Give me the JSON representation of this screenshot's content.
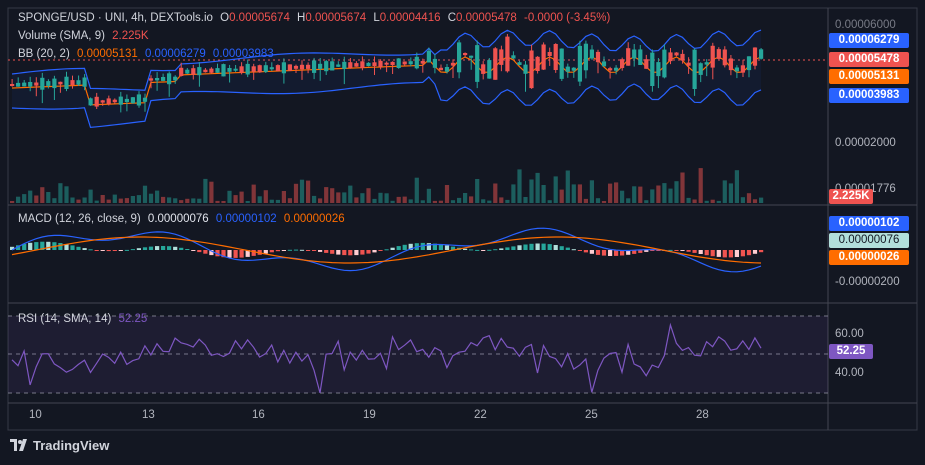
{
  "legend": {
    "symbol": "SPONGE/USD · UNI, 4h, DEXTools.io",
    "open_label": "O",
    "open": "0.00005674",
    "high_label": "H",
    "high": "0.00005674",
    "low_label": "L",
    "low": "0.00004416",
    "close_label": "C",
    "close": "0.00005478",
    "change": "-0.0000 (-3.45%)",
    "volume_name": "Volume (SMA, 9)",
    "volume_value": "2.225K",
    "bb_name": "BB (20, 2)",
    "bb_basis": "0.00005131",
    "bb_upper": "0.00006279",
    "bb_lower": "0.00003983",
    "macd_name": "MACD (12, 26, close, 9)",
    "macd_hist": "0.00000076",
    "macd_line": "0.00000102",
    "macd_signal": "0.00000026",
    "rsi_name": "RSI (14, SMA, 14)",
    "rsi_value": "52.25"
  },
  "price_scale": {
    "upper_tag": "0.00006279",
    "close_tag": "0.00005478",
    "basis_tag": "0.00005131",
    "lower_tag": "0.00003983",
    "tick": "0.00002000",
    "vol_tick": "2.225K",
    "partial_top": "0.00006000",
    "partial_vol": "0.00001776"
  },
  "macd_scale": {
    "line_tag": "0.00000102",
    "hist_tag": "0.00000076",
    "signal_tag": "0.00000026",
    "tick": "-0.00000200"
  },
  "rsi_scale": {
    "tick_60": "60.00",
    "tick_40": "40.00",
    "value_tag": "52.25"
  },
  "time_axis": [
    "10",
    "13",
    "16",
    "19",
    "22",
    "25",
    "28"
  ],
  "brand": {
    "name": "TradingView"
  },
  "colors": {
    "up": "#26a69a",
    "down": "#ef5350",
    "bb": "#2962ff",
    "basis": "#ff6d00",
    "macd": "#2962ff",
    "signal": "#ff6d00",
    "rsi": "#7e57c2",
    "bg": "#131722"
  }
}
